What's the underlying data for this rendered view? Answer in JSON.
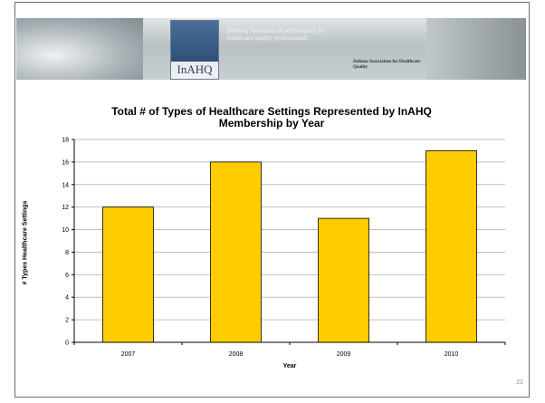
{
  "banner": {
    "logo_text": "InAHQ",
    "tagline": "Defining Standards of performance for healthcare quality professionals",
    "association": "Indiana Association for Healthcare Quality"
  },
  "slide_number": "22",
  "colors": {
    "bar": "#ffcc00",
    "bar_stroke": "#000000",
    "grid": "#bfbfbf"
  },
  "chart_data": {
    "type": "bar",
    "title": "Total # of Types of Healthcare Settings Represented by InAHQ Membership by Year",
    "title_line1": "Total # of Types of Healthcare Settings Represented by InAHQ",
    "title_line2": "Membership by Year",
    "xlabel": "Year",
    "ylabel": "# Types Healthcare Settings",
    "categories": [
      "2007",
      "2008",
      "2009",
      "2010"
    ],
    "values": [
      12,
      16,
      11,
      17
    ],
    "ylim": [
      0,
      18
    ],
    "yticks": [
      0,
      2,
      4,
      6,
      8,
      10,
      12,
      14,
      16,
      18
    ],
    "grid": true,
    "legend": "none"
  }
}
